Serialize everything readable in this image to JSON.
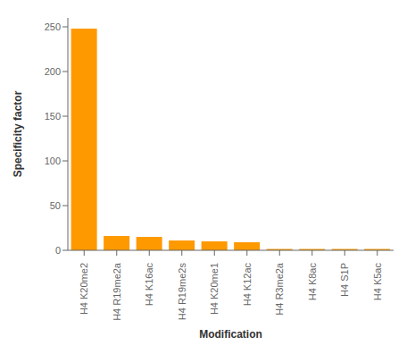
{
  "chart_data": {
    "type": "bar",
    "categories": [
      "H4 K20me2",
      "H4 R19me2a",
      "H4 K16ac",
      "H4 R19me2s",
      "H4 K20me1",
      "H4 K12ac",
      "H4 R3me2a",
      "H4 K8ac",
      "H4 S1P",
      "H4 K5ac"
    ],
    "values": [
      248,
      16,
      15,
      11,
      10,
      9,
      1.5,
      1.5,
      1.5,
      1.5
    ],
    "color": "#FF9900",
    "xlabel": "Modification",
    "ylabel": "Specificity factor",
    "ylim": [
      0,
      260
    ],
    "yticks": [
      0,
      50,
      100,
      150,
      200,
      250
    ],
    "grid": false
  }
}
